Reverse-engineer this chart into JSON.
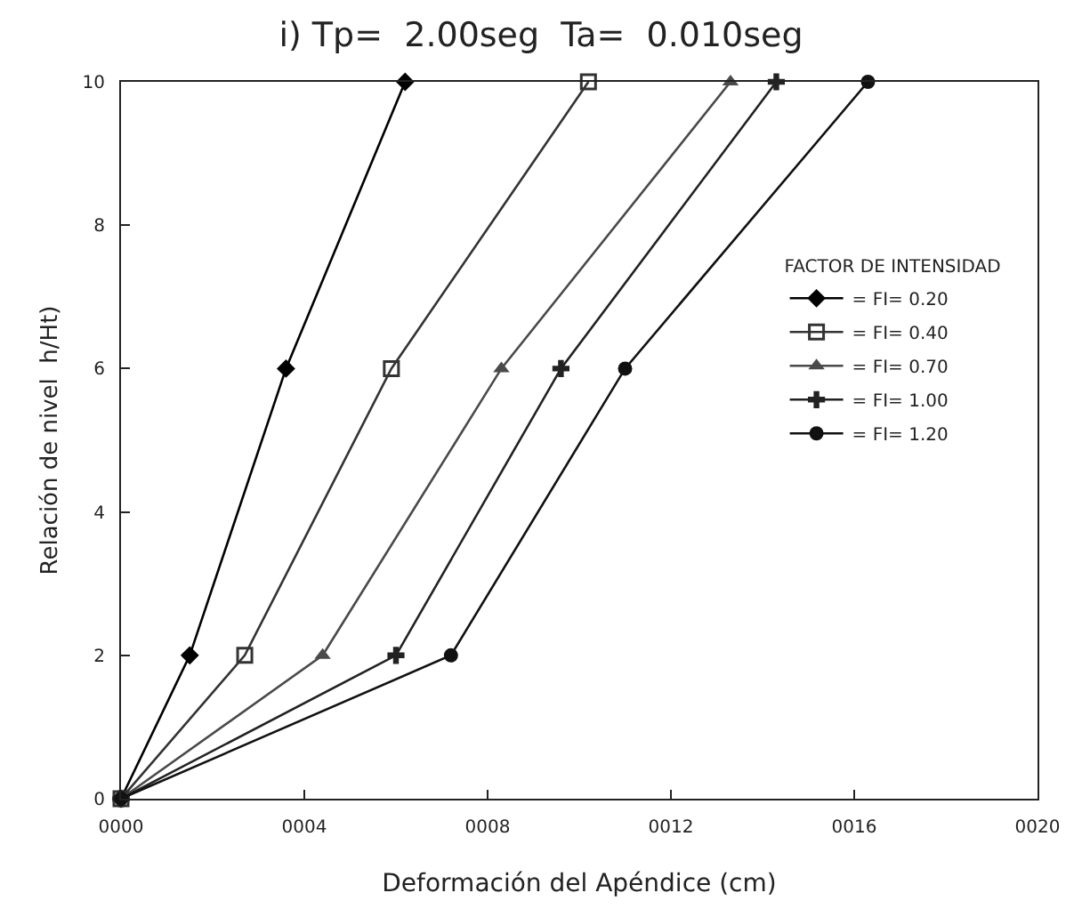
{
  "chart_data": {
    "type": "line",
    "title": "i) Tp=  2.00seg  Ta=  0.010seg",
    "xlabel": "Deformación del Apéndice (cm)",
    "ylabel": "Relación de nivel  h/Ht)",
    "legend_title": "FACTOR DE INTENSIDAD",
    "legend": "right",
    "grid": false,
    "line_style": "solid",
    "xlim": [
      0,
      20
    ],
    "xticks": [
      {
        "value": 0,
        "label": "0000"
      },
      {
        "value": 4,
        "label": "0004"
      },
      {
        "value": 8,
        "label": "0008"
      },
      {
        "value": 12,
        "label": "0012"
      },
      {
        "value": 16,
        "label": "0016"
      },
      {
        "value": 20,
        "label": "0020"
      }
    ],
    "ylim": [
      0,
      10
    ],
    "yticks": [
      0,
      2,
      4,
      6,
      8,
      10
    ],
    "series": [
      {
        "name": "= FI= 0.20",
        "color": "#000000",
        "marker": "diamond",
        "x": [
          0,
          1.5,
          3.6,
          6.2
        ],
        "values": [
          0,
          2,
          6,
          10
        ]
      },
      {
        "name": "= FI= 0.40",
        "color": "#333333",
        "marker": "square",
        "x": [
          0,
          2.7,
          5.9,
          10.2
        ],
        "values": [
          0,
          2,
          6,
          10
        ]
      },
      {
        "name": "= FI= 0.70",
        "color": "#4a4a4a",
        "marker": "triangle",
        "x": [
          0,
          4.4,
          8.3,
          13.3
        ],
        "values": [
          0,
          2,
          6,
          10
        ]
      },
      {
        "name": "= FI= 1.00",
        "color": "#222222",
        "marker": "cross",
        "x": [
          0,
          6.0,
          9.6,
          14.3
        ],
        "values": [
          0,
          2,
          6,
          10
        ]
      },
      {
        "name": "= FI= 1.20",
        "color": "#111111",
        "marker": "circle",
        "x": [
          0,
          7.2,
          11.0,
          16.3
        ],
        "values": [
          0,
          2,
          6,
          10
        ]
      }
    ]
  }
}
